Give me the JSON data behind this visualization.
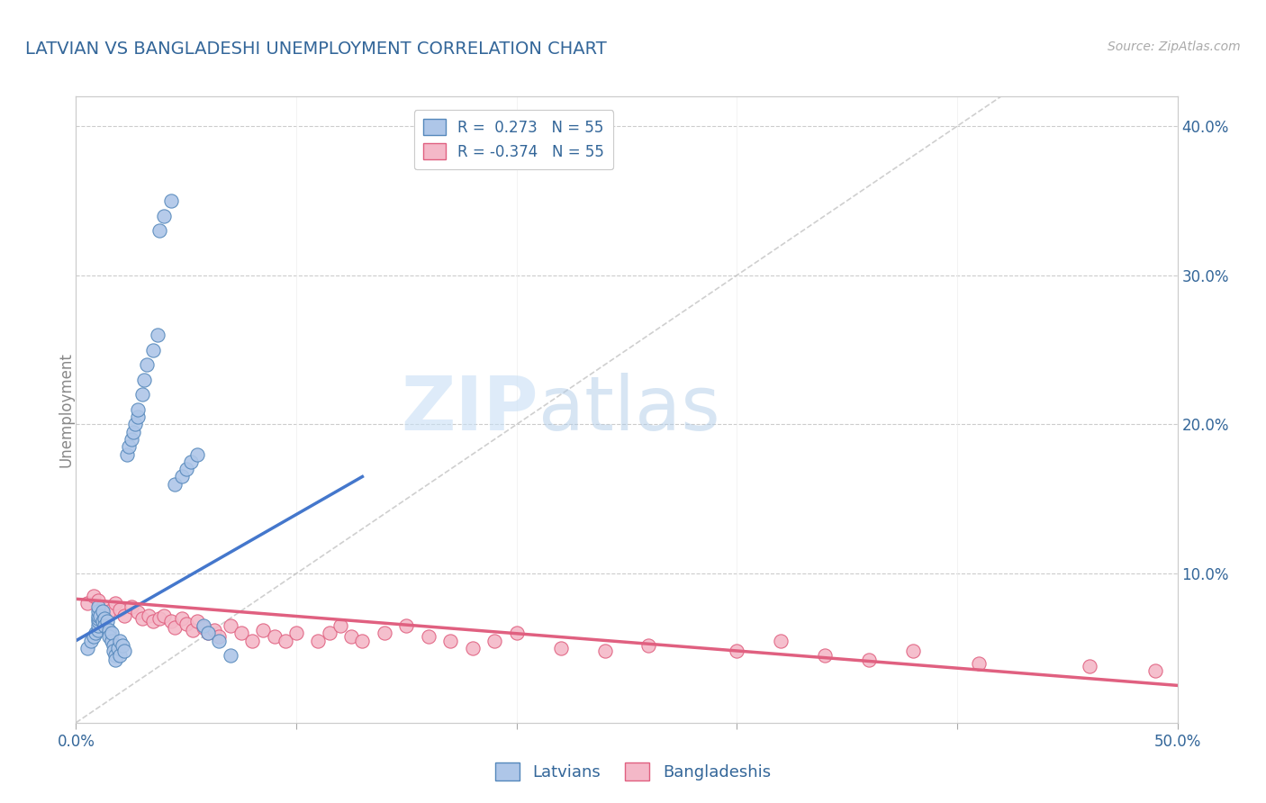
{
  "title": "LATVIAN VS BANGLADESHI UNEMPLOYMENT CORRELATION CHART",
  "source_text": "Source: ZipAtlas.com",
  "ylabel": "Unemployment",
  "xlim": [
    0.0,
    0.5
  ],
  "ylim": [
    0.0,
    0.42
  ],
  "x_ticks": [
    0.0,
    0.1,
    0.2,
    0.3,
    0.4,
    0.5
  ],
  "x_tick_labels_bottom": [
    "0.0%",
    "",
    "",
    "",
    "",
    "50.0%"
  ],
  "y_ticks_right": [
    0.1,
    0.2,
    0.3,
    0.4
  ],
  "y_tick_labels_right": [
    "10.0%",
    "20.0%",
    "30.0%",
    "40.0%"
  ],
  "latvian_color": "#aec6e8",
  "bangladeshi_color": "#f4b8c8",
  "latvian_edge_color": "#5588bb",
  "bangladeshi_edge_color": "#e06080",
  "latvian_R": 0.273,
  "bangladeshi_R": -0.374,
  "N": 55,
  "legend_label_1": "Latvians",
  "legend_label_2": "Bangladeshis",
  "watermark_zip": "ZIP",
  "watermark_atlas": "atlas",
  "background_color": "#ffffff",
  "grid_color": "#cccccc",
  "title_color": "#336699",
  "axis_color": "#336699",
  "latvian_scatter_x": [
    0.005,
    0.007,
    0.008,
    0.009,
    0.01,
    0.01,
    0.01,
    0.01,
    0.01,
    0.01,
    0.01,
    0.011,
    0.012,
    0.012,
    0.013,
    0.013,
    0.014,
    0.015,
    0.015,
    0.015,
    0.016,
    0.016,
    0.017,
    0.017,
    0.018,
    0.018,
    0.019,
    0.02,
    0.02,
    0.021,
    0.022,
    0.023,
    0.024,
    0.025,
    0.026,
    0.027,
    0.028,
    0.028,
    0.03,
    0.031,
    0.032,
    0.035,
    0.037,
    0.038,
    0.04,
    0.043,
    0.045,
    0.048,
    0.05,
    0.052,
    0.055,
    0.058,
    0.06,
    0.065,
    0.07
  ],
  "latvian_scatter_y": [
    0.05,
    0.055,
    0.058,
    0.06,
    0.062,
    0.065,
    0.068,
    0.07,
    0.072,
    0.075,
    0.078,
    0.072,
    0.068,
    0.075,
    0.07,
    0.065,
    0.068,
    0.06,
    0.062,
    0.058,
    0.055,
    0.06,
    0.052,
    0.048,
    0.045,
    0.042,
    0.05,
    0.055,
    0.045,
    0.052,
    0.048,
    0.18,
    0.185,
    0.19,
    0.195,
    0.2,
    0.205,
    0.21,
    0.22,
    0.23,
    0.24,
    0.25,
    0.26,
    0.33,
    0.34,
    0.35,
    0.16,
    0.165,
    0.17,
    0.175,
    0.18,
    0.065,
    0.06,
    0.055,
    0.045
  ],
  "bangladeshi_scatter_x": [
    0.005,
    0.008,
    0.01,
    0.012,
    0.015,
    0.018,
    0.02,
    0.022,
    0.025,
    0.028,
    0.03,
    0.033,
    0.035,
    0.038,
    0.04,
    0.043,
    0.045,
    0.048,
    0.05,
    0.053,
    0.055,
    0.058,
    0.06,
    0.063,
    0.065,
    0.07,
    0.075,
    0.08,
    0.085,
    0.09,
    0.095,
    0.1,
    0.11,
    0.115,
    0.12,
    0.125,
    0.13,
    0.14,
    0.15,
    0.16,
    0.17,
    0.18,
    0.19,
    0.2,
    0.22,
    0.24,
    0.26,
    0.3,
    0.32,
    0.34,
    0.36,
    0.38,
    0.41,
    0.46,
    0.49
  ],
  "bangladeshi_scatter_y": [
    0.08,
    0.085,
    0.082,
    0.078,
    0.075,
    0.08,
    0.076,
    0.072,
    0.078,
    0.074,
    0.07,
    0.072,
    0.068,
    0.07,
    0.072,
    0.068,
    0.064,
    0.07,
    0.066,
    0.062,
    0.068,
    0.064,
    0.06,
    0.062,
    0.058,
    0.065,
    0.06,
    0.055,
    0.062,
    0.058,
    0.055,
    0.06,
    0.055,
    0.06,
    0.065,
    0.058,
    0.055,
    0.06,
    0.065,
    0.058,
    0.055,
    0.05,
    0.055,
    0.06,
    0.05,
    0.048,
    0.052,
    0.048,
    0.055,
    0.045,
    0.042,
    0.048,
    0.04,
    0.038,
    0.035
  ],
  "latvian_line_x": [
    0.0,
    0.13
  ],
  "latvian_line_y": [
    0.055,
    0.165
  ],
  "bangladeshi_line_x": [
    0.0,
    0.5
  ],
  "bangladeshi_line_y": [
    0.083,
    0.025
  ],
  "diag_line_x": [
    0.0,
    0.42
  ],
  "diag_line_y": [
    0.0,
    0.42
  ]
}
